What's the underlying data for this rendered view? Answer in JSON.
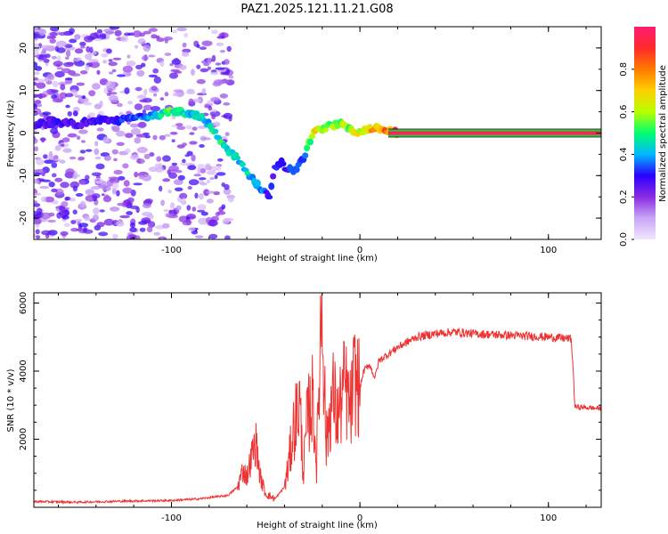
{
  "title": "PAZ1.2025.121.11.21.G08",
  "colors": {
    "snr_line": "#ee3333",
    "trace_core": "#ff2060",
    "trace_edge": "#22cc33",
    "background": "#ffffff",
    "colorbar_stops": [
      "#f3e6ff",
      "#c8a6f5",
      "#8a2be2",
      "#2a00ff",
      "#00b8ff",
      "#00ff70",
      "#b8ff00",
      "#ffd000",
      "#ff7a00",
      "#ff2a2a",
      "#ff1c74"
    ]
  },
  "chart_data": [
    {
      "type": "heatmap",
      "name": "spectrogram",
      "xlabel": "Height of straight line (km)",
      "ylabel": "Frequency (Hz)",
      "xlim": [
        -173,
        128
      ],
      "ylim": [
        -25,
        25
      ],
      "x_ticks": [
        -100,
        0,
        100
      ],
      "x_tick_labels": [
        "-100",
        "0",
        "100"
      ],
      "y_ticks": [
        -20,
        -10,
        0,
        10,
        20
      ],
      "y_tick_labels": [
        "-20",
        "-10",
        "0",
        "10",
        "20"
      ],
      "colorbar": {
        "label": "Normalized spectral amplitude",
        "range": [
          0,
          1
        ],
        "ticks": [
          0.0,
          0.2,
          0.4,
          0.6,
          0.8
        ],
        "tick_labels": [
          "0.0",
          "0.2",
          "0.4",
          "0.6",
          "0.8"
        ]
      },
      "dominant_frequency_track": {
        "x": [
          -173,
          -160,
          -150,
          -140,
          -130,
          -120,
          -110,
          -100,
          -95,
          -90,
          -85,
          -80,
          -75,
          -70,
          -65,
          -60,
          -55,
          -50,
          -48,
          -45,
          -42,
          -40,
          -35,
          -30,
          -25,
          -20,
          -15,
          -10,
          -5,
          0,
          5,
          10,
          15,
          20,
          30,
          60,
          100,
          128
        ],
        "freq": [
          2,
          2.5,
          2,
          3,
          3,
          3.5,
          4,
          5,
          5,
          4.5,
          4,
          2,
          -1,
          -4,
          -6,
          -9,
          -12,
          -14,
          -15,
          -8,
          -7,
          -8,
          -9,
          -6,
          0,
          1,
          2,
          2,
          1,
          0,
          1,
          1,
          0.5,
          0,
          0,
          0,
          0,
          0
        ],
        "amplitude": [
          0.25,
          0.3,
          0.25,
          0.3,
          0.3,
          0.35,
          0.4,
          0.55,
          0.5,
          0.45,
          0.45,
          0.45,
          0.5,
          0.5,
          0.45,
          0.45,
          0.4,
          0.35,
          0.3,
          0.3,
          0.3,
          0.3,
          0.35,
          0.35,
          0.7,
          0.6,
          0.6,
          0.6,
          0.6,
          0.65,
          0.75,
          0.8,
          0.85,
          0.95,
          1.0,
          1.0,
          1.0,
          1.0
        ]
      },
      "grid": false
    },
    {
      "type": "line",
      "name": "snr",
      "xlabel": "Height of straight line (km)",
      "ylabel": "SNR (10 * v/v)",
      "xlim": [
        -173,
        128
      ],
      "ylim": [
        0,
        6300
      ],
      "x_ticks": [
        -100,
        0,
        100
      ],
      "x_tick_labels": [
        "-100",
        "0",
        "100"
      ],
      "y_ticks": [
        2000,
        4000,
        6000
      ],
      "y_tick_labels": [
        "2000",
        "4000",
        "6000"
      ],
      "x": [
        -173,
        -150,
        -125,
        -100,
        -85,
        -70,
        -65,
        -62,
        -60,
        -57,
        -55,
        -53,
        -50,
        -47,
        -45,
        -40,
        -38,
        -35,
        -32,
        -30,
        -28,
        -25,
        -23,
        -21,
        -20,
        -18,
        -16,
        -14,
        -12,
        -10,
        -8,
        -5,
        -3,
        0,
        2,
        5,
        8,
        10,
        15,
        20,
        25,
        30,
        40,
        50,
        60,
        80,
        100,
        112,
        113,
        114,
        128
      ],
      "y": [
        170,
        150,
        180,
        200,
        250,
        350,
        600,
        1100,
        900,
        1600,
        1900,
        900,
        400,
        300,
        250,
        600,
        1200,
        2400,
        3100,
        1000,
        2600,
        3200,
        1200,
        5000,
        6300,
        1800,
        2800,
        3300,
        2600,
        3100,
        3600,
        2800,
        3800,
        3500,
        4000,
        4200,
        3800,
        4300,
        4500,
        4700,
        4850,
        5000,
        5100,
        5150,
        5100,
        5050,
        5000,
        4950,
        4200,
        2950,
        2900
      ],
      "grid": false
    }
  ]
}
